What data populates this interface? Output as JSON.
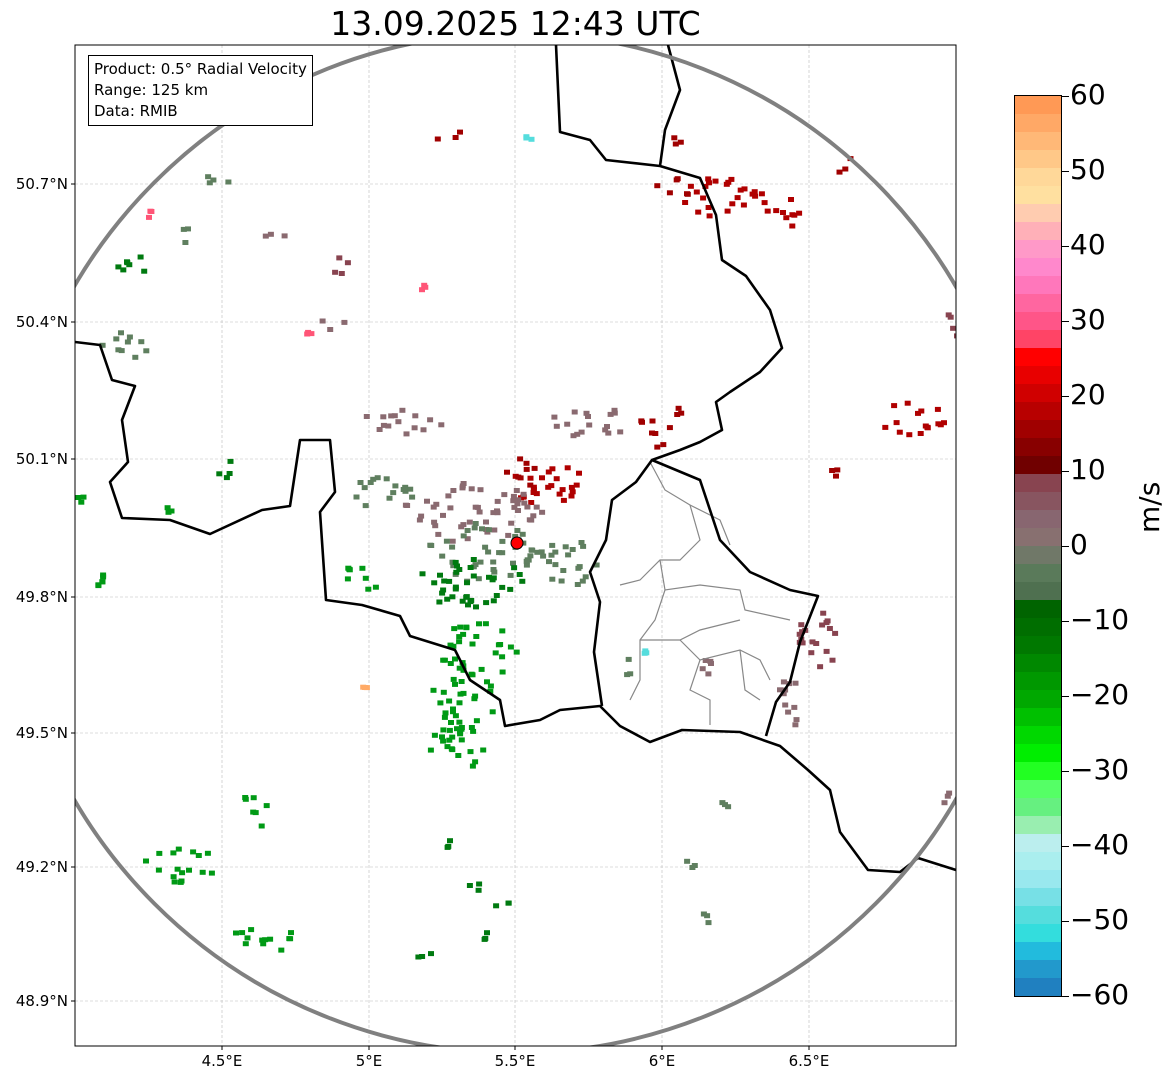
{
  "title": "13.09.2025 12:43 UTC",
  "info_box": {
    "product": "Product: 0.5° Radial Velocity",
    "range": "Range: 125 km",
    "data": "Data: RMIB"
  },
  "axes": {
    "lat_ticks": [
      "50.7°N",
      "50.4°N",
      "50.1°N",
      "49.8°N",
      "49.5°N",
      "49.2°N",
      "48.9°N"
    ],
    "lon_ticks": [
      "4.5°E",
      "5°E",
      "5.5°E",
      "6°E",
      "6.5°E"
    ]
  },
  "colorbar": {
    "label": "m/s",
    "ticks": [
      "60",
      "50",
      "40",
      "30",
      "20",
      "10",
      "0",
      "−10",
      "−20",
      "−30",
      "−40",
      "−50",
      "−60"
    ],
    "min": -60,
    "max": 60,
    "colors": [
      "#ff9955",
      "#ffa866",
      "#ffb877",
      "#ffc888",
      "#ffd899",
      "#ffe0a0",
      "#ffccb0",
      "#ffb0b8",
      "#ff99c8",
      "#ff88cc",
      "#ff77bb",
      "#ff66a0",
      "#ff5588",
      "#ff4466",
      "#ff0000",
      "#e80000",
      "#d00000",
      "#b80000",
      "#a00000",
      "#880000",
      "#700000",
      "#884450",
      "#885560",
      "#886670",
      "#887070",
      "#707868",
      "#5a7a5a",
      "#4f7050",
      "#006400",
      "#006e00",
      "#007800",
      "#008800",
      "#009800",
      "#00a800",
      "#00c000",
      "#00d800",
      "#00ee00",
      "#22ff22",
      "#55ff66",
      "#66f080",
      "#99eeb0",
      "#bbeeee",
      "#aaeeee",
      "#99e8ee",
      "#77e0e6",
      "#55dddd",
      "#33dddd",
      "#22bbdd",
      "#2299cc",
      "#2080c0"
    ]
  },
  "radar_site": {
    "color": "#ff0000"
  }
}
